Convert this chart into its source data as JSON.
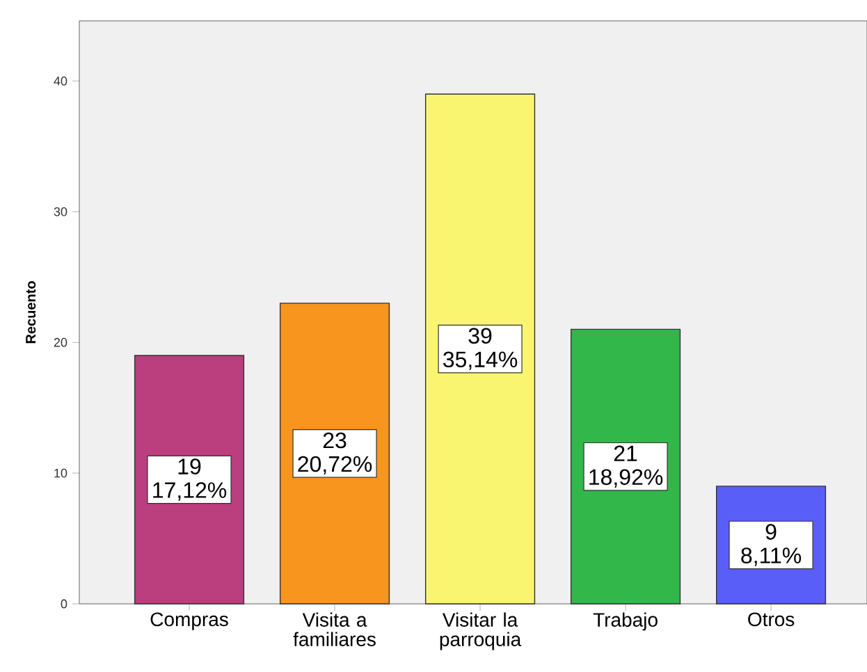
{
  "chart_data": {
    "type": "bar",
    "ylabel": "Recuento",
    "categories": [
      "Compras",
      "Visita a familiares",
      "Visitar la parroquia",
      "Trabajo",
      "Otros"
    ],
    "values": [
      19,
      23,
      39,
      21,
      9
    ],
    "colors": [
      "#bb3e7e",
      "#f7951e",
      "#faf571",
      "#31b74a",
      "#5a5ef8"
    ],
    "value_labels": [
      "19 17,12%",
      "23 20,72%",
      "39 35,14%",
      "21 18,92%",
      "9 8,11%"
    ],
    "ylim": [
      0,
      44.6
    ],
    "yticks": [
      0,
      10,
      20,
      30,
      40
    ]
  }
}
